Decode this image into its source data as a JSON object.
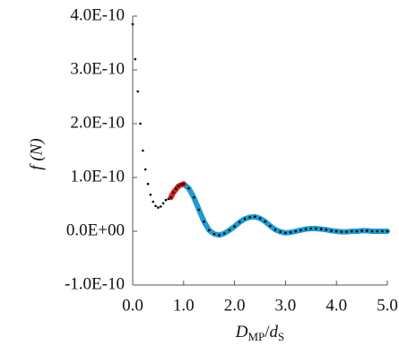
{
  "chart_data": {
    "type": "line",
    "y_label": "f (N)",
    "x_label": [
      "D",
      "MP",
      "/",
      "d",
      "S"
    ],
    "xlim": [
      0,
      5
    ],
    "ylim": [
      -1e-10,
      4e-10
    ],
    "xticks": [
      {
        "value": 0,
        "label": "0.0"
      },
      {
        "value": 1,
        "label": "1.0"
      },
      {
        "value": 2,
        "label": "2.0"
      },
      {
        "value": 3,
        "label": "3.0"
      },
      {
        "value": 4,
        "label": "4.0"
      },
      {
        "value": 5,
        "label": "5.0"
      }
    ],
    "yticks": [
      {
        "value": -1e-10,
        "label": "-1.0E-10"
      },
      {
        "value": 0,
        "label": "0.0E+00"
      },
      {
        "value": 1e-10,
        "label": "1.0E-10"
      },
      {
        "value": 2e-10,
        "label": "2.0E-10"
      },
      {
        "value": 3e-10,
        "label": "3.0E-10"
      },
      {
        "value": 4e-10,
        "label": "4.0E-10"
      }
    ],
    "series": [
      {
        "color": "#1f9bd1",
        "mode": "line",
        "x": [
          1.0,
          1.1,
          1.2,
          1.3,
          1.4,
          1.5,
          1.6,
          1.7,
          1.8,
          1.9,
          2.0,
          2.1,
          2.2,
          2.3,
          2.4,
          2.5,
          2.6,
          2.7,
          2.8,
          2.9,
          3.0,
          3.1,
          3.2,
          3.3,
          3.4,
          3.5,
          3.6,
          3.7,
          3.8,
          3.9,
          4.0,
          4.1,
          4.2,
          4.3,
          4.4,
          4.5,
          4.6,
          4.7,
          4.8,
          4.9,
          5.0
        ],
        "values": [
          8.8e-11,
          8e-11,
          6.3e-11,
          4e-11,
          1.8e-11,
          2e-12,
          -5e-12,
          -7e-12,
          -4e-12,
          2e-12,
          9e-12,
          1.7e-11,
          2.3e-11,
          2.6e-11,
          2.7e-11,
          2.4e-11,
          1.8e-11,
          1e-11,
          3e-12,
          -1e-12,
          -3e-12,
          -2e-12,
          0,
          2e-12,
          4e-12,
          5e-12,
          5e-12,
          4e-12,
          3e-12,
          1e-12,
          0,
          -1e-12,
          -1e-12,
          0,
          0,
          1e-12,
          1e-12,
          0,
          0,
          0,
          0
        ]
      },
      {
        "color": "#d9201c",
        "mode": "line",
        "x": [
          0.75,
          0.8,
          0.9,
          1.0
        ],
        "values": [
          6.3e-11,
          7.2e-11,
          8.4e-11,
          8.8e-11
        ]
      },
      {
        "color": "#000000",
        "mode": "markers",
        "x": [
          0.0,
          0.05,
          0.1,
          0.15,
          0.2,
          0.25,
          0.3,
          0.35,
          0.4,
          0.45,
          0.5,
          0.55,
          0.6,
          0.65,
          0.7,
          0.75,
          0.8,
          0.85,
          0.9,
          0.95,
          1.0,
          1.1,
          1.2,
          1.3,
          1.4,
          1.5,
          1.6,
          1.7,
          1.8,
          1.9,
          2.0,
          2.1,
          2.2,
          2.3,
          2.4,
          2.5,
          2.6,
          2.7,
          2.8,
          2.9,
          3.0,
          3.1,
          3.2,
          3.3,
          3.4,
          3.5,
          3.6,
          3.7,
          3.8,
          3.9,
          4.0,
          4.1,
          4.2,
          4.3,
          4.4,
          4.5,
          4.6,
          4.7,
          4.8,
          4.9,
          5.0
        ],
        "values": [
          3.85e-10,
          3.2e-10,
          2.6e-10,
          2e-10,
          1.5e-10,
          1.15e-10,
          8.8e-11,
          6.8e-11,
          5.5e-11,
          4.7e-11,
          4.4e-11,
          4.6e-11,
          5.2e-11,
          5.8e-11,
          6e-11,
          6.3e-11,
          7.2e-11,
          7.9e-11,
          8.4e-11,
          8.7e-11,
          8.8e-11,
          8e-11,
          6.3e-11,
          4e-11,
          1.8e-11,
          2e-12,
          -5e-12,
          -7e-12,
          -4e-12,
          2e-12,
          9e-12,
          1.7e-11,
          2.3e-11,
          2.6e-11,
          2.7e-11,
          2.4e-11,
          1.8e-11,
          1e-11,
          3e-12,
          -1e-12,
          -3e-12,
          -2e-12,
          0,
          2e-12,
          4e-12,
          5e-12,
          5e-12,
          4e-12,
          3e-12,
          1e-12,
          0,
          -1e-12,
          -1e-12,
          0,
          0,
          1e-12,
          1e-12,
          0,
          0,
          0,
          0
        ]
      }
    ]
  }
}
